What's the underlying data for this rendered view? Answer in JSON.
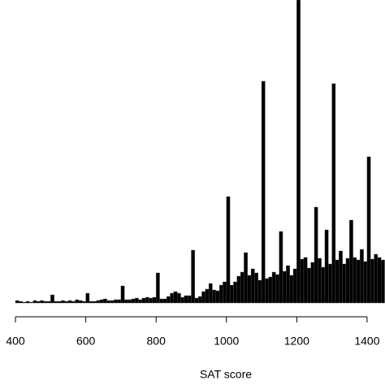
{
  "chart_data": {
    "type": "histogram",
    "xlabel": "SAT score",
    "color": "#000000",
    "bins": [
      400,
      410,
      420,
      430,
      440,
      450,
      460,
      470,
      480,
      490,
      500,
      510,
      520,
      530,
      540,
      550,
      560,
      570,
      580,
      590,
      600,
      610,
      620,
      630,
      640,
      650,
      660,
      670,
      680,
      690,
      700,
      710,
      720,
      730,
      740,
      750,
      760,
      770,
      780,
      790,
      800,
      810,
      820,
      830,
      840,
      850,
      860,
      870,
      880,
      890,
      900,
      910,
      920,
      930,
      940,
      950,
      960,
      970,
      980,
      990,
      1000,
      1010,
      1020,
      1030,
      1040,
      1050,
      1060,
      1070,
      1080,
      1090,
      1100,
      1110,
      1120,
      1130,
      1140,
      1150,
      1160,
      1170,
      1180,
      1190,
      1200,
      1210,
      1220,
      1230,
      1240,
      1250,
      1260,
      1270,
      1280,
      1290,
      1300,
      1310,
      1320,
      1330,
      1340,
      1350,
      1360,
      1370,
      1380,
      1390,
      1400,
      1410,
      1420,
      1430,
      1440,
      1450
    ],
    "values": [
      3,
      2,
      1,
      2,
      1,
      3,
      2,
      3,
      2,
      2,
      10,
      2,
      2,
      3,
      2,
      3,
      2,
      4,
      3,
      2,
      12,
      2,
      2,
      3,
      4,
      5,
      3,
      3,
      4,
      4,
      21,
      4,
      4,
      5,
      6,
      4,
      6,
      7,
      6,
      7,
      37,
      5,
      5,
      8,
      12,
      14,
      12,
      7,
      9,
      9,
      65,
      6,
      8,
      14,
      17,
      24,
      16,
      15,
      22,
      26,
      131,
      22,
      26,
      33,
      38,
      62,
      34,
      42,
      37,
      28,
      273,
      30,
      32,
      38,
      35,
      88,
      39,
      46,
      34,
      42,
      373,
      54,
      56,
      43,
      50,
      118,
      55,
      44,
      90,
      48,
      270,
      53,
      64,
      48,
      55,
      102,
      56,
      53,
      66,
      51,
      180,
      54,
      60,
      56,
      53
    ],
    "xlim": [
      356,
      1451
    ],
    "ylim": [
      0,
      373
    ],
    "xticks": [
      400,
      600,
      800,
      1000,
      1200,
      1400
    ]
  }
}
